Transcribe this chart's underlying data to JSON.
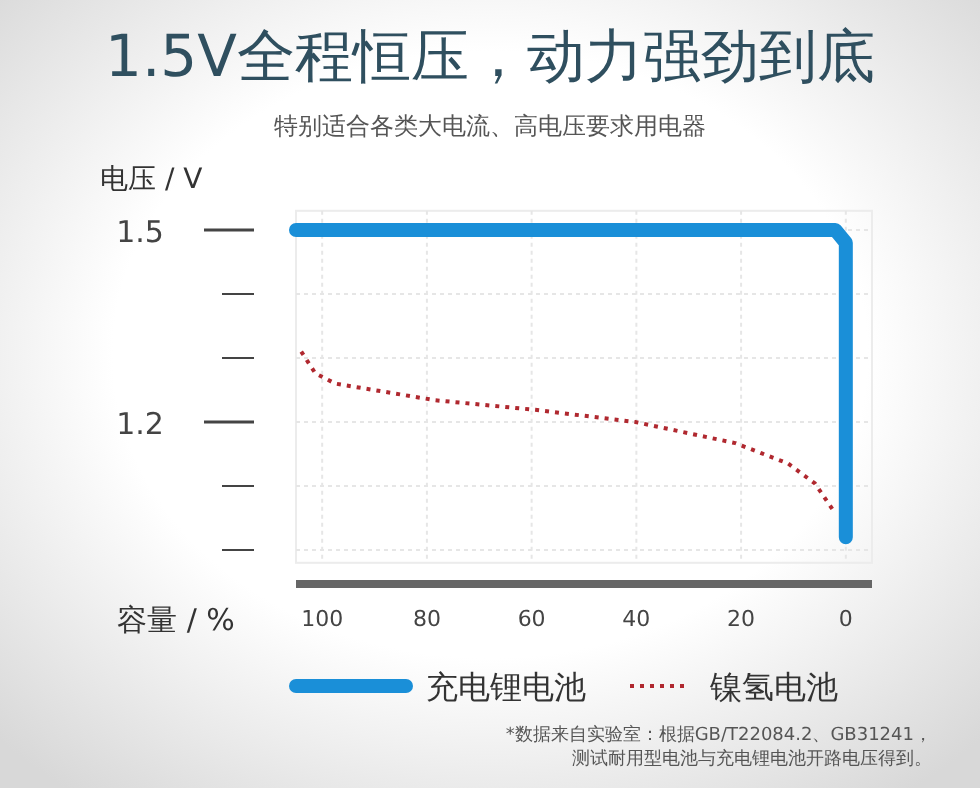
{
  "chart_data": {
    "type": "line",
    "title": "1.5V全程恒压，动力强劲到底",
    "subtitle": "特别适合各类大电流、高电压要求用电器",
    "xlabel": "容量 / %",
    "ylabel": "电压 / V",
    "xlim": [
      105,
      -5
    ],
    "ylim": [
      0.98,
      1.53
    ],
    "xticks": [
      100,
      80,
      60,
      40,
      20,
      0
    ],
    "yticks": [
      {
        "value": 1.5,
        "label": "1.5"
      },
      {
        "value": 1.4,
        "label": null
      },
      {
        "value": 1.3,
        "label": null
      },
      {
        "value": 1.2,
        "label": "1.2"
      },
      {
        "value": 1.1,
        "label": null
      },
      {
        "value": 1.0,
        "label": null
      }
    ],
    "legend": "bottom",
    "grid": true,
    "series": [
      {
        "name": "充电锂电池",
        "color": "#1a8fd8",
        "line_style": "solid",
        "x": [
          105,
          2,
          0,
          0
        ],
        "values": [
          1.5,
          1.5,
          1.48,
          1.02
        ]
      },
      {
        "name": "镍氢电池",
        "color": "#b0282f",
        "line_style": "dotted",
        "x": [
          104,
          101.3,
          97.5,
          78.4,
          59.3,
          40.2,
          21.1,
          11,
          5.9,
          2
        ],
        "values": [
          1.31,
          1.276,
          1.26,
          1.234,
          1.219,
          1.2,
          1.167,
          1.135,
          1.104,
          1.057
        ]
      }
    ],
    "annotations": [
      "*数据来自实验室：根据GB/T22084.2、GB31241，",
      "测试耐用型电池与充电锂电池开路电压得到。"
    ]
  }
}
